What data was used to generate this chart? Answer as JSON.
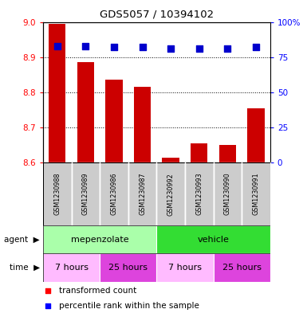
{
  "title": "GDS5057 / 10394102",
  "samples": [
    "GSM1230988",
    "GSM1230989",
    "GSM1230986",
    "GSM1230987",
    "GSM1230992",
    "GSM1230993",
    "GSM1230990",
    "GSM1230991"
  ],
  "bar_values": [
    8.995,
    8.885,
    8.835,
    8.815,
    8.615,
    8.655,
    8.65,
    8.755
  ],
  "percentile_values": [
    83,
    83,
    82,
    82,
    81,
    81,
    81,
    82
  ],
  "ylim": [
    8.6,
    9.0
  ],
  "yticks": [
    8.6,
    8.7,
    8.8,
    8.9,
    9.0
  ],
  "right_yticks": [
    0,
    25,
    50,
    75,
    100
  ],
  "right_ylabels": [
    "0",
    "25",
    "50",
    "75",
    "100%"
  ],
  "bar_color": "#cc0000",
  "dot_color": "#0000cc",
  "agent_groups": [
    {
      "label": "mepenzolate",
      "start": 0,
      "end": 4,
      "color": "#aaffaa"
    },
    {
      "label": "vehicle",
      "start": 4,
      "end": 8,
      "color": "#33dd33"
    }
  ],
  "time_groups": [
    {
      "label": "7 hours",
      "start": 0,
      "end": 2,
      "color": "#ffbbff"
    },
    {
      "label": "25 hours",
      "start": 2,
      "end": 4,
      "color": "#dd44dd"
    },
    {
      "label": "7 hours",
      "start": 4,
      "end": 6,
      "color": "#ffbbff"
    },
    {
      "label": "25 hours",
      "start": 6,
      "end": 8,
      "color": "#dd44dd"
    }
  ],
  "sample_bg": "#cccccc",
  "sample_sep": "#ffffff"
}
